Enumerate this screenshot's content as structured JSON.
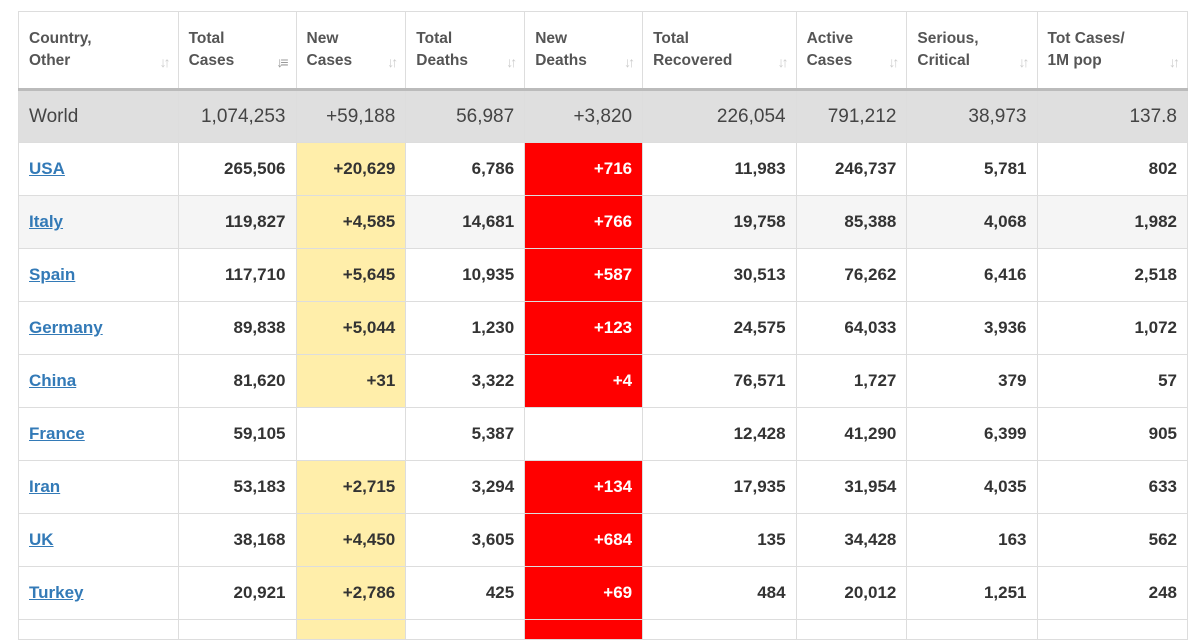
{
  "headers": [
    {
      "l1": "Country,",
      "l2": "Other"
    },
    {
      "l1": "Total",
      "l2": "Cases"
    },
    {
      "l1": "New",
      "l2": "Cases"
    },
    {
      "l1": "Total",
      "l2": "Deaths"
    },
    {
      "l1": "New",
      "l2": "Deaths"
    },
    {
      "l1": "Total",
      "l2": "Recovered"
    },
    {
      "l1": "Active",
      "l2": "Cases"
    },
    {
      "l1": "Serious,",
      "l2": "Critical"
    },
    {
      "l1": "Tot Cases/",
      "l2": "1M pop"
    }
  ],
  "sort_icon": "↓↑",
  "sort_active_icon": "↓≡",
  "world": [
    "World",
    "1,074,253",
    "+59,188",
    "56,987",
    "+3,820",
    "226,054",
    "791,212",
    "38,973",
    "137.8"
  ],
  "rows": [
    [
      "USA",
      "265,506",
      "+20,629",
      "6,786",
      "+716",
      "11,983",
      "246,737",
      "5,781",
      "802"
    ],
    [
      "Italy",
      "119,827",
      "+4,585",
      "14,681",
      "+766",
      "19,758",
      "85,388",
      "4,068",
      "1,982"
    ],
    [
      "Spain",
      "117,710",
      "+5,645",
      "10,935",
      "+587",
      "30,513",
      "76,262",
      "6,416",
      "2,518"
    ],
    [
      "Germany",
      "89,838",
      "+5,044",
      "1,230",
      "+123",
      "24,575",
      "64,033",
      "3,936",
      "1,072"
    ],
    [
      "China",
      "81,620",
      "+31",
      "3,322",
      "+4",
      "76,571",
      "1,727",
      "379",
      "57"
    ],
    [
      "France",
      "59,105",
      "",
      "5,387",
      "",
      "12,428",
      "41,290",
      "6,399",
      "905"
    ],
    [
      "Iran",
      "53,183",
      "+2,715",
      "3,294",
      "+134",
      "17,935",
      "31,954",
      "4,035",
      "633"
    ],
    [
      "UK",
      "38,168",
      "+4,450",
      "3,605",
      "+684",
      "135",
      "34,428",
      "163",
      "562"
    ],
    [
      "Turkey",
      "20,921",
      "+2,786",
      "425",
      "+69",
      "484",
      "20,012",
      "1,251",
      "248"
    ]
  ],
  "colors": {
    "new_cases": "#ffeeaa",
    "new_deaths": "#ff0000",
    "link": "#337ab7"
  }
}
